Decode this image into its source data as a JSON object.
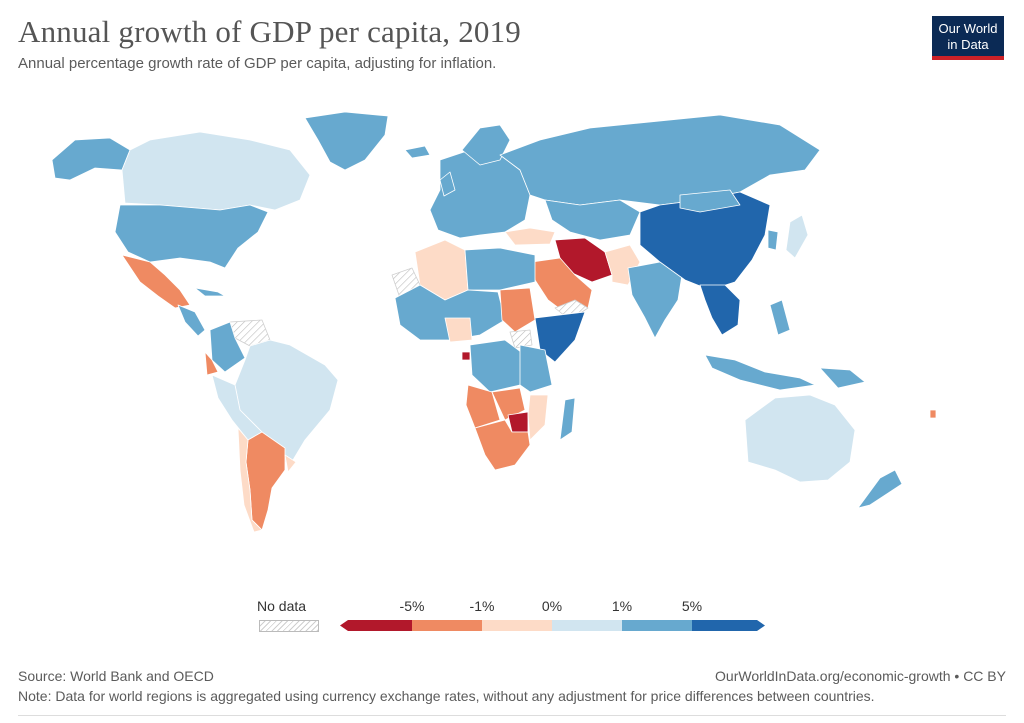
{
  "header": {
    "title": "Annual growth of GDP per capita, 2019",
    "subtitle": "Annual percentage growth rate of GDP per capita, adjusting for inflation."
  },
  "logo": {
    "line1": "Our World",
    "line2": "in Data"
  },
  "legend": {
    "no_data_label": "No data",
    "bins": [
      {
        "color": "#b2182b"
      },
      {
        "color": "#ef8a62"
      },
      {
        "color": "#fddbc7"
      },
      {
        "color": "#d1e5f0"
      },
      {
        "color": "#67a9cf"
      },
      {
        "color": "#2166ac"
      }
    ],
    "ticks": [
      "-5%",
      "-1%",
      "0%",
      "1%",
      "5%"
    ]
  },
  "map_colors": {
    "strong_decline": "#b2182b",
    "decline": "#ef8a62",
    "slight_decline": "#fddbc7",
    "slight_growth": "#d1e5f0",
    "growth": "#67a9cf",
    "strong_growth": "#2166ac",
    "no_data": "#ffffff"
  },
  "footer": {
    "source": "Source: World Bank and OECD",
    "url": "OurWorldInData.org/economic-growth • CC BY",
    "note": "Note: Data for world regions is aggregated using currency exchange rates, without any adjustment for price differences between countries."
  }
}
